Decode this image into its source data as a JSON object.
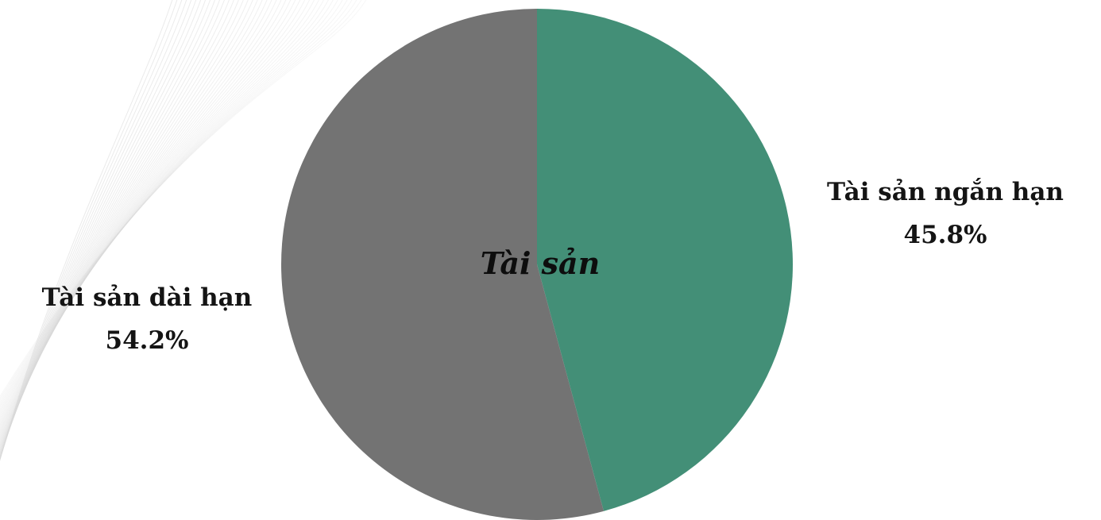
{
  "chart_data": {
    "type": "pie",
    "title": "Tài sản",
    "slices": [
      {
        "label": "Tài sản ngắn hạn",
        "value": 45.8,
        "display": "45.8%",
        "color": "#438f77"
      },
      {
        "label": "Tài sản dài hạn",
        "value": 54.2,
        "display": "54.2%",
        "color": "#737373"
      }
    ],
    "unit": "%",
    "start_angle": "12 o'clock",
    "direction": "clockwise",
    "labels_position": "outside"
  },
  "colors": {
    "background": "#ffffff",
    "decoration_lines": "#d9d9d9",
    "text": "#141414"
  }
}
